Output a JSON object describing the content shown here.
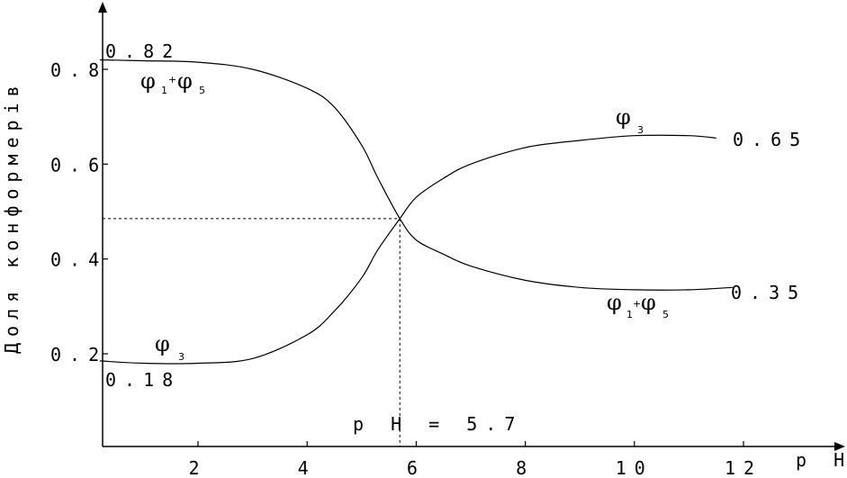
{
  "chart_data": {
    "type": "line",
    "title": "",
    "xlabel": "p H",
    "ylabel": "Доля конформерів",
    "xlim": [
      0.2,
      12.6
    ],
    "ylim": [
      0.0,
      0.93
    ],
    "x_ticks": [
      2,
      4,
      6,
      8,
      10,
      12
    ],
    "x_tick_labels": [
      "2",
      "4",
      "6",
      "8",
      "10",
      "12"
    ],
    "y_ticks": [
      0.2,
      0.4,
      0.6,
      0.8
    ],
    "y_tick_labels": [
      "0.2",
      "0.4",
      "0.6",
      "0.8"
    ],
    "grid": false,
    "series": [
      {
        "name": "φ1+φ5",
        "x": [
          0.2,
          1.0,
          2.0,
          3.0,
          4.0,
          4.5,
          5.0,
          5.3,
          5.7,
          6.0,
          6.5,
          7.0,
          8.0,
          9.0,
          10.0,
          11.0,
          11.8
        ],
        "y": [
          0.82,
          0.818,
          0.815,
          0.8,
          0.76,
          0.72,
          0.64,
          0.57,
          0.485,
          0.44,
          0.41,
          0.385,
          0.355,
          0.34,
          0.335,
          0.335,
          0.34
        ]
      },
      {
        "name": "φ3",
        "x": [
          0.2,
          1.0,
          2.0,
          3.0,
          4.0,
          4.5,
          5.0,
          5.3,
          5.7,
          6.0,
          6.5,
          7.0,
          8.0,
          9.0,
          10.0,
          11.0,
          11.5
        ],
        "y": [
          0.185,
          0.18,
          0.18,
          0.19,
          0.24,
          0.29,
          0.36,
          0.42,
          0.485,
          0.53,
          0.57,
          0.6,
          0.635,
          0.65,
          0.66,
          0.66,
          0.655
        ]
      }
    ],
    "annotations": {
      "left_top_value": "0.82",
      "left_bottom_value": "0.18",
      "right_top_value": "0.65",
      "right_bottom_value": "0.35",
      "intersection_label": "p H = 5.7",
      "intersection_x": 5.7,
      "intersection_y": 0.485
    },
    "curve_labels": [
      {
        "phi": "φ",
        "sub1": "1",
        "plus": "+",
        "phi2": "φ",
        "sub2": "5"
      },
      {
        "phi": "φ",
        "sub1": "3"
      },
      {
        "phi": "φ",
        "sub1": "3"
      },
      {
        "phi": "φ",
        "sub1": "1",
        "plus": "+",
        "phi2": "φ",
        "sub2": "5"
      }
    ]
  }
}
